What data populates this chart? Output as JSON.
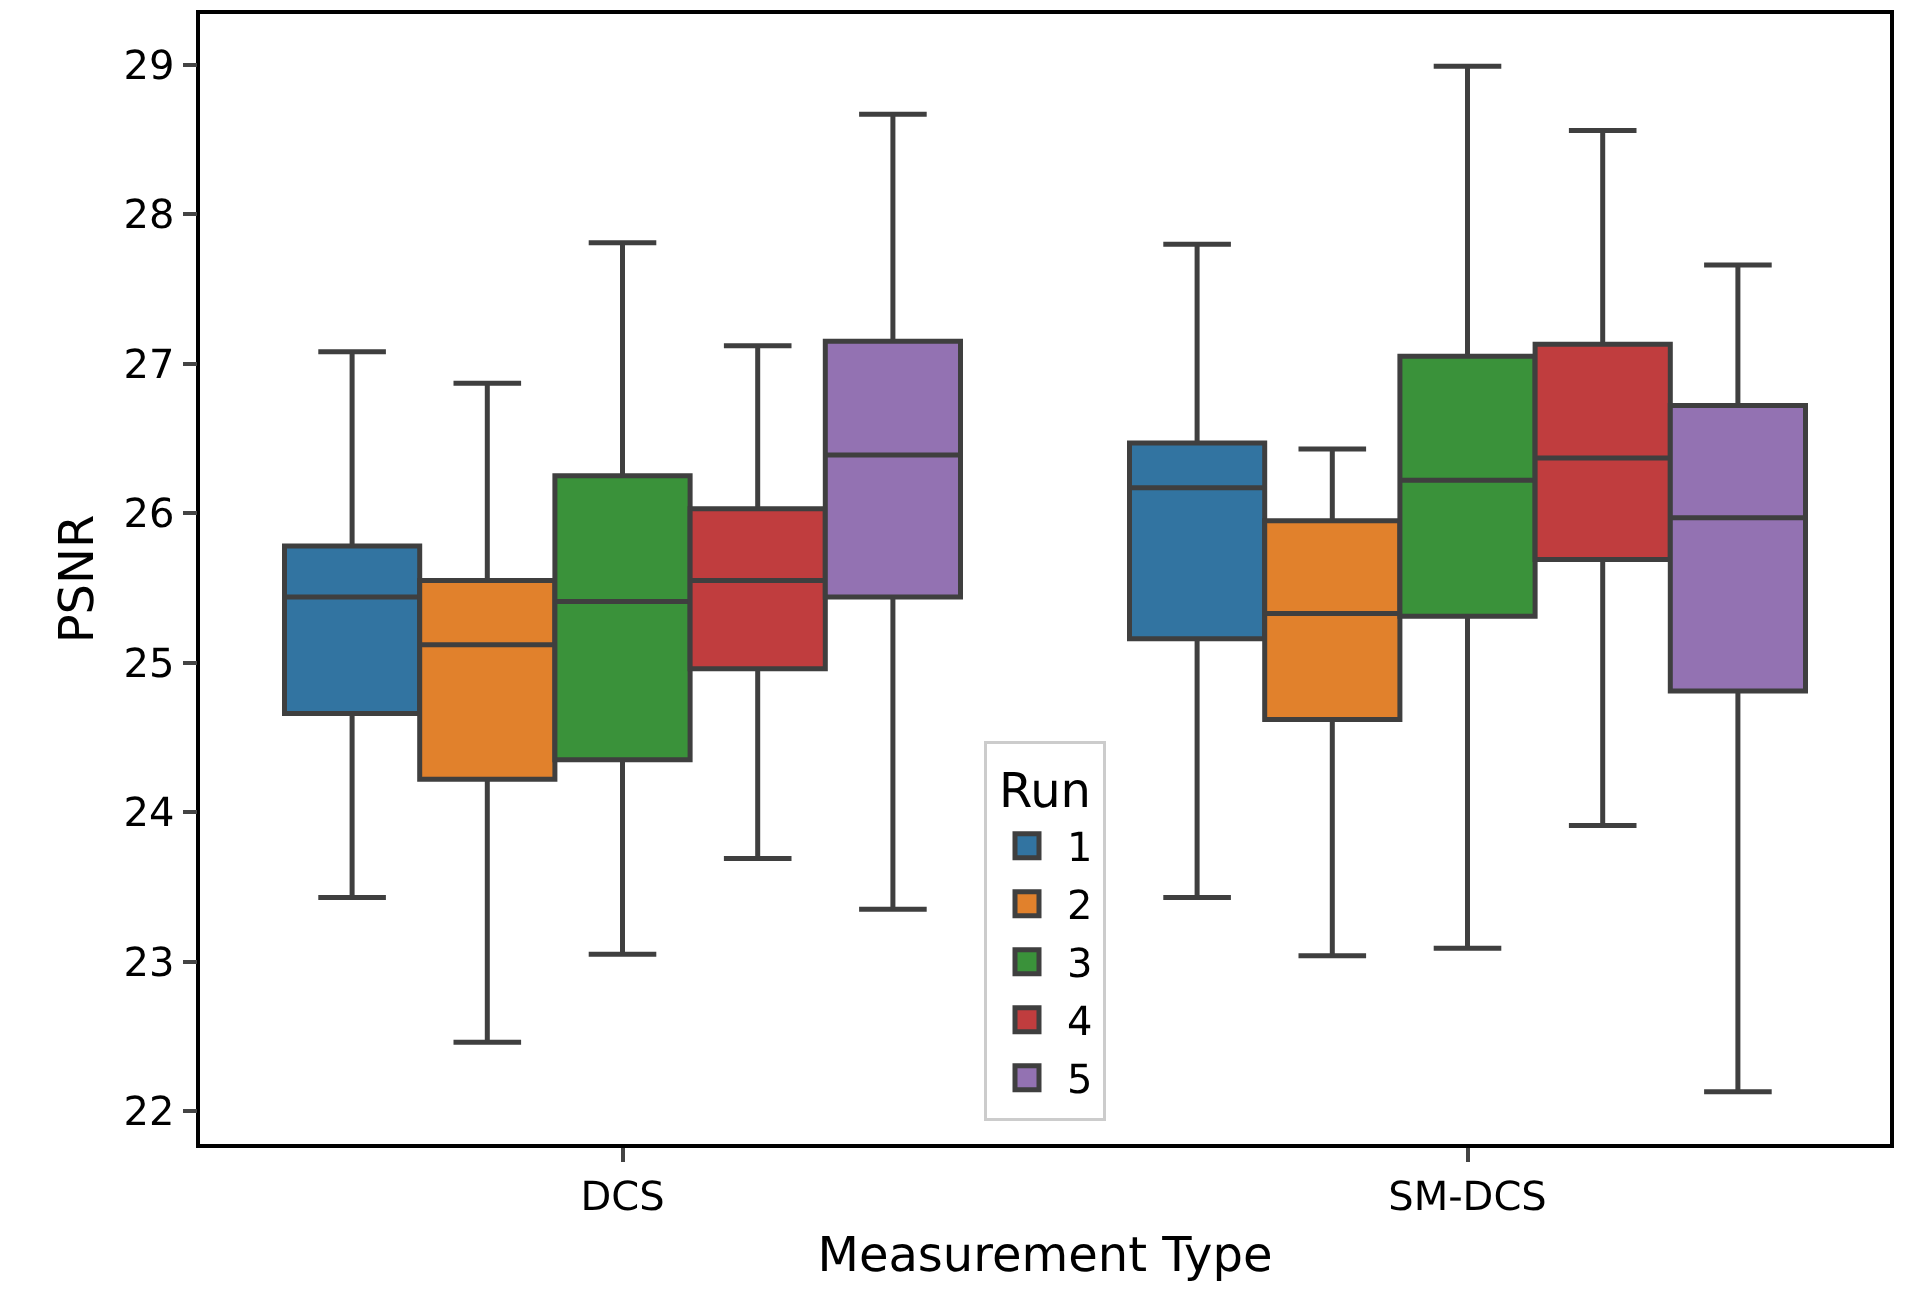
{
  "chart_data": {
    "type": "box",
    "xlabel": "Measurement Type",
    "ylabel": "PSNR",
    "legend_title": "Run",
    "categories": [
      "DCS",
      "SM-DCS"
    ],
    "ylim": [
      21.78,
      29.34
    ],
    "yticks": [
      22,
      23,
      24,
      25,
      26,
      27,
      28,
      29
    ],
    "grid": false,
    "legend": "bottom",
    "series": [
      {
        "name": "1",
        "color": "#3274a1",
        "boxes": [
          {
            "low": 23.43,
            "q1": 24.66,
            "median": 25.44,
            "q3": 25.78,
            "high": 27.08
          },
          {
            "low": 23.43,
            "q1": 25.16,
            "median": 26.17,
            "q3": 26.47,
            "high": 27.8
          }
        ]
      },
      {
        "name": "2",
        "color": "#e1812c",
        "boxes": [
          {
            "low": 22.46,
            "q1": 24.22,
            "median": 25.12,
            "q3": 25.55,
            "high": 26.87
          },
          {
            "low": 23.04,
            "q1": 24.62,
            "median": 25.33,
            "q3": 25.95,
            "high": 26.43
          }
        ]
      },
      {
        "name": "3",
        "color": "#3a923a",
        "boxes": [
          {
            "low": 23.05,
            "q1": 24.35,
            "median": 25.41,
            "q3": 26.25,
            "high": 27.81
          },
          {
            "low": 23.09,
            "q1": 25.31,
            "median": 26.22,
            "q3": 27.05,
            "high": 28.99
          }
        ]
      },
      {
        "name": "4",
        "color": "#c03d3e",
        "boxes": [
          {
            "low": 23.69,
            "q1": 24.96,
            "median": 25.55,
            "q3": 26.03,
            "high": 27.12
          },
          {
            "low": 23.91,
            "q1": 25.69,
            "median": 26.37,
            "q3": 27.13,
            "high": 28.56
          }
        ]
      },
      {
        "name": "5",
        "color": "#9372b2",
        "boxes": [
          {
            "low": 23.35,
            "q1": 25.44,
            "median": 26.39,
            "q3": 27.15,
            "high": 28.67
          },
          {
            "low": 22.13,
            "q1": 24.81,
            "median": 25.97,
            "q3": 26.72,
            "high": 27.66
          }
        ]
      }
    ]
  }
}
